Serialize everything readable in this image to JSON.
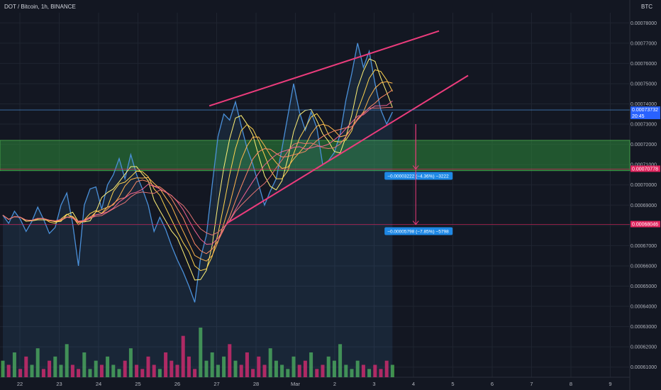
{
  "header": {
    "title": "DOT / Bitcoin, 1h, BINANCE",
    "unit": "BTC"
  },
  "colors": {
    "bg": "#131722",
    "grid": "#1f2430",
    "price": "#4a90d9",
    "up": "#4caf50",
    "down": "#e91e63",
    "trend": "#ec3c7c",
    "zone": "#2e8b3a",
    "badge_blue": "#2962ff",
    "badge_red": "#e0245e",
    "measure": "#1e88e5"
  },
  "chart_data": {
    "type": "line",
    "y_axis_ticks": [
      "0.00078000",
      "0.00077000",
      "0.00076000",
      "0.00075000",
      "0.00074000",
      "0.00073000",
      "0.00072000",
      "0.00071000",
      "0.00070000",
      "0.00069000",
      "0.00068000",
      "0.00067000",
      "0.00066000",
      "0.00065000",
      "0.00064000",
      "0.00063000",
      "0.00062000",
      "0.00061000"
    ],
    "x_axis_labels": [
      "22",
      "23",
      "24",
      "25",
      "26",
      "27",
      "28",
      "Mar",
      "2",
      "3",
      "4",
      "5",
      "6",
      "7",
      "8",
      "9"
    ],
    "ylim": [
      0.000605,
      0.000785
    ],
    "price_series": [
      [
        0,
        0.000685
      ],
      [
        1,
        0.000681
      ],
      [
        2,
        0.000687
      ],
      [
        3,
        0.000683
      ],
      [
        4,
        0.000677
      ],
      [
        5,
        0.000682
      ],
      [
        6,
        0.000689
      ],
      [
        7,
        0.000683
      ],
      [
        8,
        0.000676
      ],
      [
        9,
        0.000679
      ],
      [
        10,
        0.00069
      ],
      [
        11,
        0.000696
      ],
      [
        12,
        0.000681
      ],
      [
        13,
        0.00066
      ],
      [
        14,
        0.00069
      ],
      [
        15,
        0.000698
      ],
      [
        16,
        0.000699
      ],
      [
        17,
        0.000688
      ],
      [
        18,
        0.0007
      ],
      [
        19,
        0.000705
      ],
      [
        20,
        0.000713
      ],
      [
        21,
        0.000703
      ],
      [
        22,
        0.000715
      ],
      [
        23,
        0.000705
      ],
      [
        24,
        0.000698
      ],
      [
        25,
        0.00069
      ],
      [
        26,
        0.000677
      ],
      [
        27,
        0.000684
      ],
      [
        28,
        0.000678
      ],
      [
        29,
        0.00067
      ],
      [
        30,
        0.000663
      ],
      [
        31,
        0.000657
      ],
      [
        32,
        0.00065
      ],
      [
        33,
        0.000642
      ],
      [
        34,
        0.000664
      ],
      [
        35,
        0.000675
      ],
      [
        36,
        0.0007
      ],
      [
        37,
        0.000724
      ],
      [
        38,
        0.000735
      ],
      [
        39,
        0.000732
      ],
      [
        40,
        0.000741
      ],
      [
        41,
        0.000729
      ],
      [
        42,
        0.000718
      ],
      [
        43,
        0.00071
      ],
      [
        44,
        0.0007
      ],
      [
        45,
        0.00069
      ],
      [
        46,
        0.000697
      ],
      [
        47,
        0.000703
      ],
      [
        48,
        0.000718
      ],
      [
        49,
        0.000734
      ],
      [
        50,
        0.00075
      ],
      [
        51,
        0.000736
      ],
      [
        52,
        0.000727
      ],
      [
        53,
        0.000736
      ],
      [
        54,
        0.000728
      ],
      [
        55,
        0.00071
      ],
      [
        56,
        0.000712
      ],
      [
        57,
        0.000716
      ],
      [
        58,
        0.000725
      ],
      [
        59,
        0.000742
      ],
      [
        60,
        0.000755
      ],
      [
        61,
        0.00077
      ],
      [
        62,
        0.000758
      ],
      [
        63,
        0.000766
      ],
      [
        64,
        0.00075
      ],
      [
        65,
        0.000737
      ],
      [
        66,
        0.00073
      ],
      [
        67,
        0.000736
      ]
    ],
    "volume_series": [
      4,
      3,
      6,
      2,
      5,
      3,
      7,
      2,
      4,
      5,
      3,
      8,
      3,
      2,
      6,
      2,
      4,
      3,
      5,
      3,
      2,
      4,
      7,
      3,
      2,
      5,
      3,
      2,
      6,
      4,
      3,
      10,
      5,
      2,
      12,
      4,
      6,
      3,
      5,
      8,
      4,
      3,
      6,
      2,
      5,
      3,
      7,
      4,
      3,
      2,
      5,
      3,
      4,
      6,
      2,
      3,
      5,
      4,
      8,
      3,
      2,
      4,
      3,
      2,
      3,
      2,
      4,
      3
    ],
    "resistance_line": [
      [
        35.5,
        0.000739
      ],
      [
        75,
        0.000776
      ]
    ],
    "support_line": [
      [
        38.5,
        0.000681
      ],
      [
        80,
        0.000754
      ]
    ],
    "zone": [
      0.000707,
      0.000722
    ],
    "levels": [
      {
        "price": 0.000737,
        "label": "0.00073732",
        "extra": "20:45"
      },
      {
        "price": 0.0007078,
        "label": "0.00070778"
      },
      {
        "price": 0.00068046,
        "label": "0.00068046"
      }
    ],
    "measure_labels": [
      "−0.00003222 (−4.36%) −3222",
      "−0.00005798 (−7.85%) −5798"
    ],
    "projection_x": 71
  }
}
